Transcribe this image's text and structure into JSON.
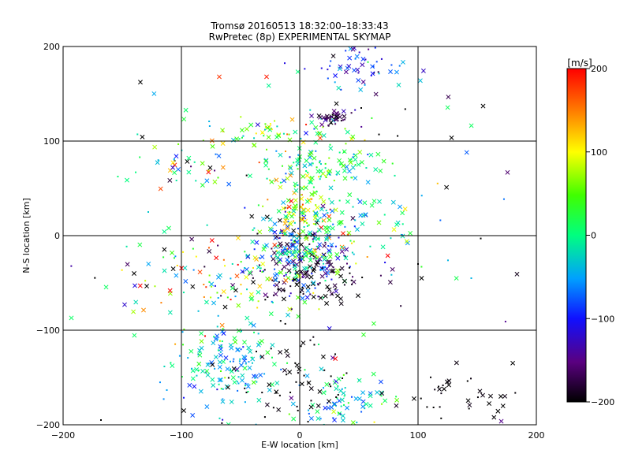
{
  "chart_data": {
    "type": "scatter",
    "title": "Tromsø 20160513 18:32:00–18:33:43",
    "subtitle": "RwPretec (8p) EXPERIMENTAL SKYMAP",
    "xlabel": "E-W location [km]",
    "ylabel": "N-S location [km]",
    "xlim": [
      -200,
      200
    ],
    "ylim": [
      -200,
      200
    ],
    "x_ticks": [
      -200,
      -100,
      0,
      100,
      200
    ],
    "y_ticks": [
      -200,
      -100,
      0,
      100,
      200
    ],
    "x_tick_labels": [
      "−200",
      "−100",
      "0",
      "100",
      "200"
    ],
    "y_tick_labels": [
      "−200",
      "−100",
      "0",
      "100",
      "200"
    ],
    "grid": true,
    "colorbar": {
      "label": "[m/s]",
      "range": [
        -200,
        200
      ],
      "ticks": [
        200,
        100,
        0,
        -100,
        -200
      ],
      "tick_labels": [
        "200",
        "100",
        "0",
        "−100",
        "−200"
      ],
      "colormap": "black-purple-blue-cyan-green-yellow-red"
    },
    "clusters": [
      {
        "cx": 0,
        "cy": -20,
        "sx": 22,
        "sy": 22,
        "n": 260,
        "vmean": -60,
        "vspread": 90
      },
      {
        "cx": 5,
        "cy": -45,
        "sx": 30,
        "sy": 12,
        "n": 90,
        "vmean": -190,
        "vspread": 20
      },
      {
        "cx": 0,
        "cy": 30,
        "sx": 15,
        "sy": 25,
        "n": 110,
        "vmean": 70,
        "vspread": 70
      },
      {
        "cx": 20,
        "cy": 75,
        "sx": 25,
        "sy": 10,
        "n": 90,
        "vmean": -10,
        "vspread": 40
      },
      {
        "cx": -20,
        "cy": 110,
        "sx": 35,
        "sy": 10,
        "n": 70,
        "vmean": 40,
        "vspread": 70
      },
      {
        "cx": 28,
        "cy": 125,
        "sx": 6,
        "sy": 4,
        "n": 45,
        "vmean": -170,
        "vspread": 20
      },
      {
        "cx": 55,
        "cy": 180,
        "sx": 18,
        "sy": 15,
        "n": 60,
        "vmean": -95,
        "vspread": 35
      },
      {
        "cx": -60,
        "cy": -140,
        "sx": 22,
        "sy": 25,
        "n": 160,
        "vmean": -30,
        "vspread": 40
      },
      {
        "cx": 35,
        "cy": -175,
        "sx": 18,
        "sy": 15,
        "n": 80,
        "vmean": -20,
        "vspread": 50
      },
      {
        "cx": -2,
        "cy": -160,
        "sx": 25,
        "sy": 25,
        "n": 60,
        "vmean": -200,
        "vspread": 5
      },
      {
        "cx": 130,
        "cy": -165,
        "sx": 25,
        "sy": 15,
        "n": 35,
        "vmean": -200,
        "vspread": 5
      },
      {
        "cx": -75,
        "cy": -45,
        "sx": 40,
        "sy": 25,
        "n": 90,
        "vmean": 30,
        "vspread": 110
      },
      {
        "cx": -95,
        "cy": 75,
        "sx": 20,
        "sy": 15,
        "n": 40,
        "vmean": 20,
        "vspread": 160
      },
      {
        "cx": 40,
        "cy": 20,
        "sx": 30,
        "sy": 25,
        "n": 80,
        "vmean": 0,
        "vspread": 40
      },
      {
        "cx": 20,
        "cy": 0,
        "sx": 120,
        "sy": 130,
        "n": 110,
        "vmean": -40,
        "vspread": 140
      }
    ],
    "points": [
      {
        "x": 155,
        "y": 137,
        "v": -200
      },
      {
        "x": 153,
        "y": -3,
        "v": -200
      },
      {
        "x": 145,
        "y": -45,
        "v": -40
      },
      {
        "x": 100,
        "y": -30,
        "v": -200
      },
      {
        "x": 103,
        "y": -45,
        "v": -200
      },
      {
        "x": -168,
        "y": -195,
        "v": -200
      },
      {
        "x": -140,
        "y": -40,
        "v": -200
      },
      {
        "x": -148,
        "y": -73,
        "v": -120
      },
      {
        "x": -128,
        "y": 25,
        "v": -30
      },
      {
        "x": -193,
        "y": -87,
        "v": 10
      },
      {
        "x": -98,
        "y": -185,
        "v": -200
      },
      {
        "x": -68,
        "y": 168,
        "v": 180
      },
      {
        "x": -28,
        "y": 168,
        "v": 190
      },
      {
        "x": 67,
        "y": 107,
        "v": -200
      },
      {
        "x": 52,
        "y": 135,
        "v": -200
      },
      {
        "x": 170,
        "y": -170,
        "v": -200
      }
    ]
  }
}
